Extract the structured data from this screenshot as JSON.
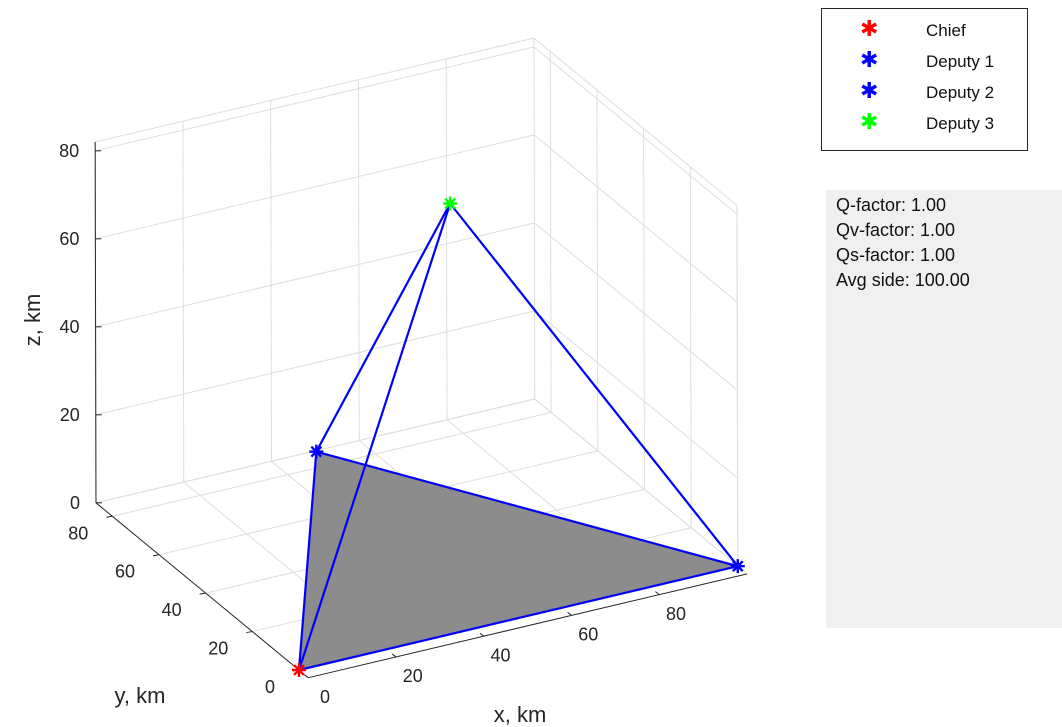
{
  "chart_data": {
    "type": "3d-plot",
    "xlabel": "x, km",
    "ylabel": "y, km",
    "zlabel": "z, km",
    "xlim": [
      0,
      100
    ],
    "ylim": [
      0,
      87
    ],
    "zlim": [
      0,
      82
    ],
    "xticks": [
      0,
      20,
      40,
      60,
      80
    ],
    "yticks": [
      0,
      20,
      40,
      60,
      80
    ],
    "zticks": [
      0,
      20,
      40,
      60,
      80
    ],
    "grid": true,
    "points": [
      {
        "name": "Chief",
        "x": 0,
        "y": 0,
        "z": 0,
        "color": "#ff0000"
      },
      {
        "name": "Deputy 1",
        "x": 100,
        "y": 0,
        "z": 0,
        "color": "#0000ff"
      },
      {
        "name": "Deputy 2",
        "x": 50,
        "y": 86.6,
        "z": 0,
        "color": "#0000ff"
      },
      {
        "name": "Deputy 3",
        "x": 50,
        "y": 28.9,
        "z": 81.6,
        "color": "#00ff00"
      }
    ],
    "edges": [
      [
        0,
        1
      ],
      [
        1,
        2
      ],
      [
        2,
        0
      ],
      [
        0,
        3
      ],
      [
        1,
        3
      ],
      [
        2,
        3
      ]
    ],
    "shaded_face": [
      0,
      1,
      2
    ],
    "edge_color": "#0000ff",
    "face_color": "#8c8c8c"
  },
  "legend": [
    {
      "label": "Chief",
      "color": "#ff0000",
      "marker": "✱"
    },
    {
      "label": "Deputy 1",
      "color": "#0000ff",
      "marker": "✱"
    },
    {
      "label": "Deputy 2",
      "color": "#0000ff",
      "marker": "✱"
    },
    {
      "label": "Deputy 3",
      "color": "#00ff00",
      "marker": "✱"
    }
  ],
  "info_panel": {
    "lines": [
      "Q-factor: 1.00",
      "Qv-factor: 1.00",
      "Qs-factor: 1.00",
      "Avg side: 100.00"
    ]
  }
}
